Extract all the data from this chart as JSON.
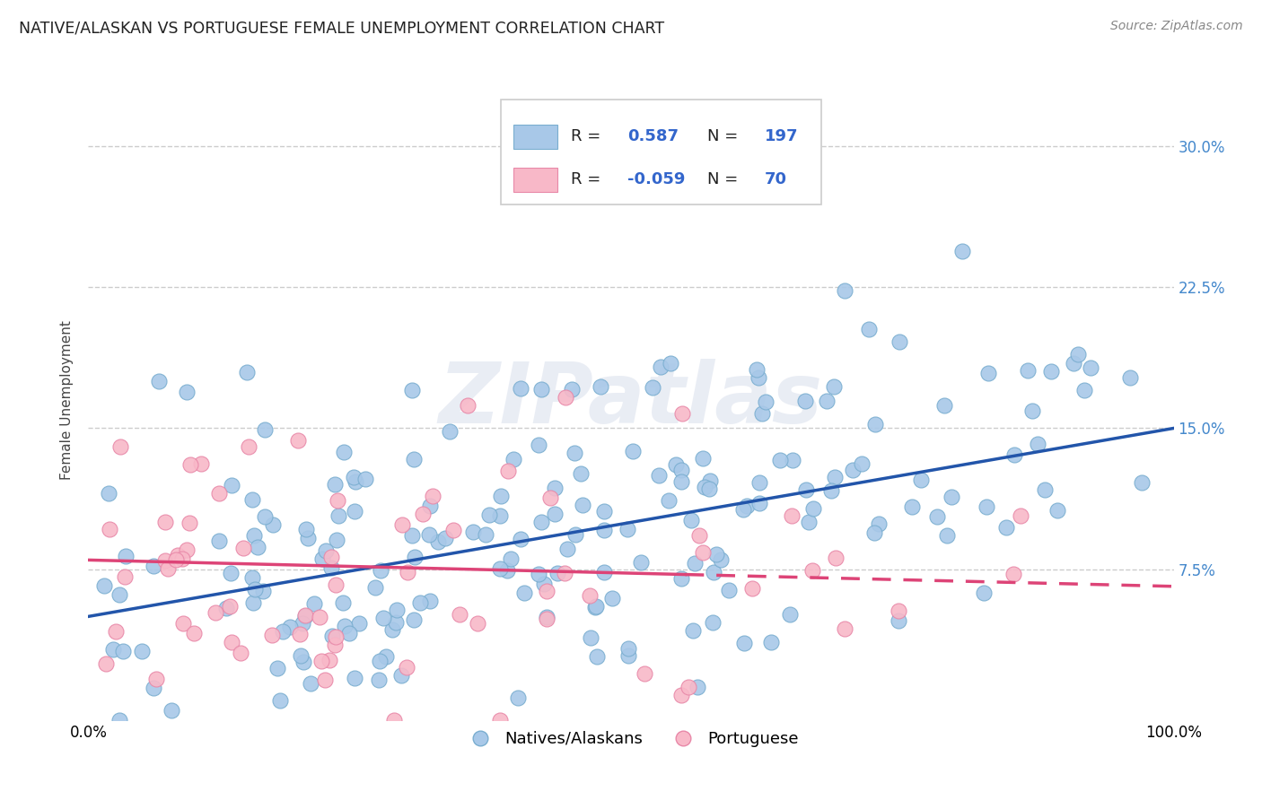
{
  "title": "NATIVE/ALASKAN VS PORTUGUESE FEMALE UNEMPLOYMENT CORRELATION CHART",
  "source": "Source: ZipAtlas.com",
  "ylabel": "Female Unemployment",
  "ytick_vals": [
    0.075,
    0.15,
    0.225,
    0.3
  ],
  "ytick_labels": [
    "7.5%",
    "15.0%",
    "22.5%",
    "30.0%"
  ],
  "blue_R": 0.587,
  "blue_N": 197,
  "pink_R": -0.059,
  "pink_N": 70,
  "blue_color": "#a8c8e8",
  "blue_edge_color": "#7aaed0",
  "pink_color": "#f8b8c8",
  "pink_edge_color": "#e888a8",
  "blue_line_color": "#2255aa",
  "pink_line_color": "#dd4477",
  "background_color": "#ffffff",
  "grid_color": "#cccccc",
  "title_fontsize": 12.5,
  "source_fontsize": 10,
  "tick_label_fontsize": 12,
  "legend_fontsize": 13,
  "ylabel_fontsize": 11,
  "seed": 42,
  "blue_intercept": 0.05,
  "blue_slope": 0.1,
  "pink_intercept": 0.08,
  "pink_slope": -0.014,
  "ylim_min": -0.005,
  "ylim_max": 0.335,
  "watermark_text": "ZIPatlas",
  "legend_label_blue": "Natives/Alaskans",
  "legend_label_pink": "Portuguese"
}
